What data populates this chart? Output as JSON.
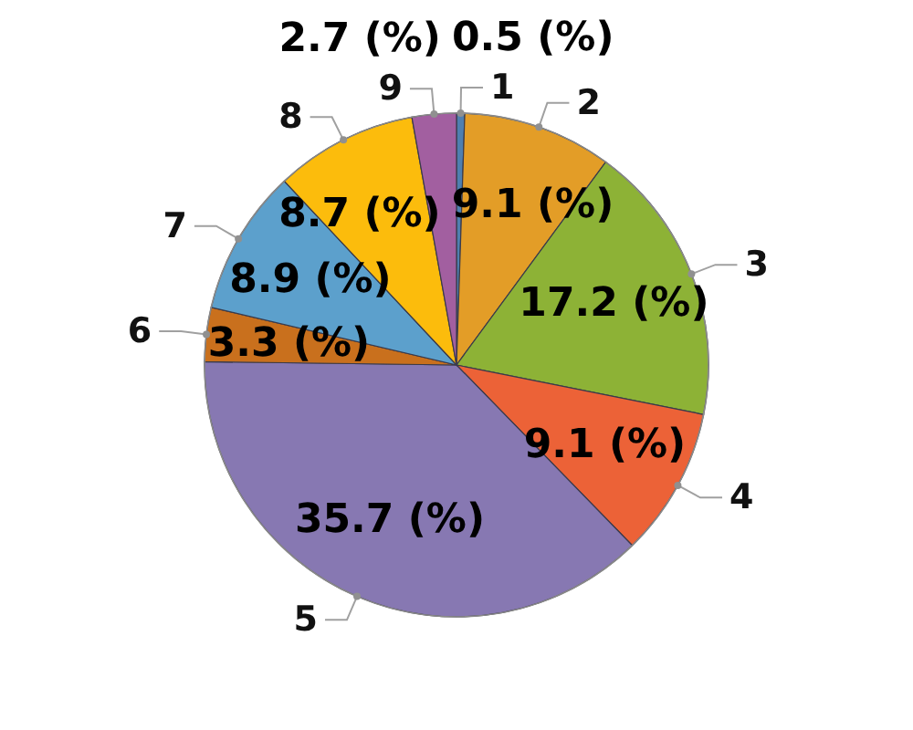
{
  "chart_data": {
    "type": "pie",
    "categories": [
      "1",
      "2",
      "3",
      "4",
      "5",
      "6",
      "7",
      "8",
      "9"
    ],
    "values": [
      0.5,
      9.1,
      17.2,
      9.1,
      35.7,
      3.3,
      8.9,
      8.7,
      2.7
    ],
    "colors": [
      "#4f7fb0",
      "#e39d27",
      "#8db236",
      "#ec6237",
      "#8778b2",
      "#c9701d",
      "#5ca0cc",
      "#fcbc0c",
      "#a25fa0"
    ],
    "value_labels": [
      "0.5 (%)",
      "9.1 (%)",
      "17.2 (%)",
      "9.1 (%)",
      "35.7 (%)",
      "3.3 (%)",
      "8.9 (%)",
      "8.7 (%)",
      "2.7 (%)"
    ],
    "legend": false
  }
}
